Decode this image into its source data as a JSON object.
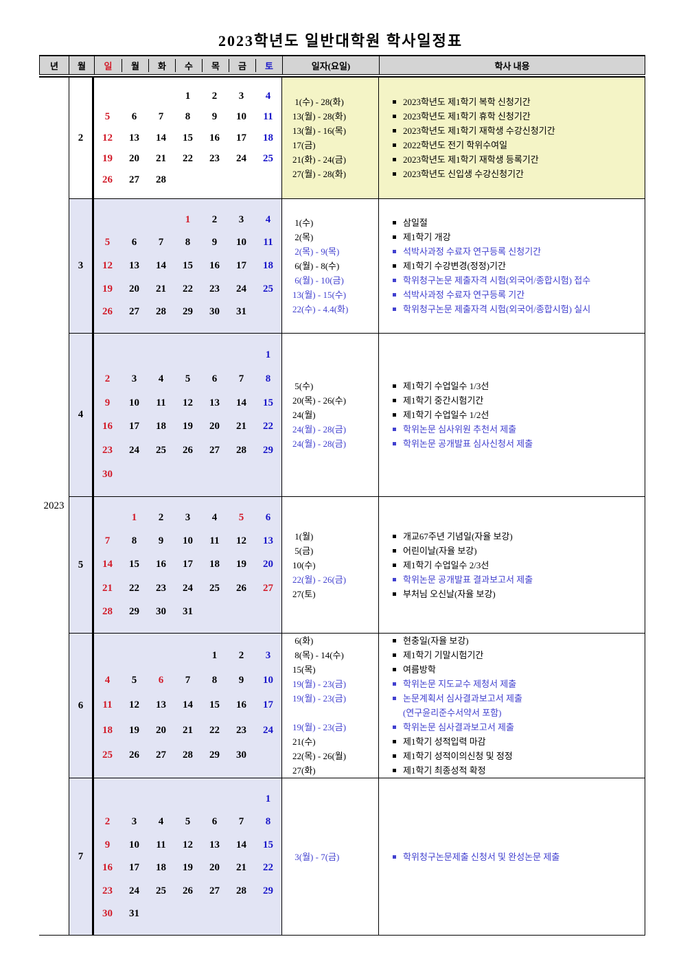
{
  "title": "2023학년도 일반대학원 학사일정표",
  "year_label": "2023",
  "header": {
    "year": "년",
    "month": "월",
    "days": [
      "일",
      "월",
      "화",
      "수",
      "목",
      "금",
      "토"
    ],
    "date_col": "일자(요일)",
    "content_col": "학사 내용"
  },
  "colors": {
    "sunday_red": "#d21c2a",
    "saturday_blue": "#1815c9",
    "event_blue": "#4140cf",
    "header_bg": "#d4d4d4",
    "yellow_bg": "#f4f4c6",
    "lavender_bg": "#e2e4f4"
  },
  "months": [
    {
      "label": "2",
      "calendar_bg": "white",
      "notes_bg": "yellow",
      "weeks": [
        [
          "",
          "",
          "",
          "1",
          "2",
          "3",
          "4b"
        ],
        [
          "5r",
          "6",
          "7",
          "8",
          "9",
          "10",
          "11b"
        ],
        [
          "12r",
          "13",
          "14",
          "15",
          "16",
          "17",
          "18b"
        ],
        [
          "19r",
          "20",
          "21",
          "22",
          "23",
          "24",
          "25b"
        ],
        [
          "26r",
          "27",
          "28",
          "",
          "",
          "",
          ""
        ]
      ],
      "dates": [
        {
          "text": " 1(수) - 28(화)",
          "color": "k"
        },
        {
          "text": "13(월) - 28(화)",
          "color": "k"
        },
        {
          "text": "13(월) - 16(목)",
          "color": "k"
        },
        {
          "text": "17(금)",
          "color": "k"
        },
        {
          "text": "21(화) - 24(금)",
          "color": "k"
        },
        {
          "text": "27(월) - 28(화)",
          "color": "k"
        }
      ],
      "events": [
        {
          "text": "2023학년도 제1학기 복학 신청기간",
          "color": "k",
          "bullet": true
        },
        {
          "text": "2023학년도 제1학기 휴학 신청기간",
          "color": "k",
          "bullet": true
        },
        {
          "text": "2023학년도 제1학기 재학생 수강신청기간",
          "color": "k",
          "bullet": true
        },
        {
          "text": "2022학년도 전기 학위수여일",
          "color": "k",
          "bullet": true
        },
        {
          "text": "2023학년도 제1학기 재학생 등록기간",
          "color": "k",
          "bullet": true
        },
        {
          "text": "2023학년도 신입생 수강신청기간",
          "color": "k",
          "bullet": true
        }
      ]
    },
    {
      "label": "3",
      "calendar_bg": "lavender",
      "notes_bg": "white",
      "weeks": [
        [
          "",
          "",
          "",
          "1r",
          "2",
          "3",
          "4b"
        ],
        [
          "5r",
          "6",
          "7",
          "8",
          "9",
          "10",
          "11b"
        ],
        [
          "12r",
          "13",
          "14",
          "15",
          "16",
          "17",
          "18b"
        ],
        [
          "19r",
          "20",
          "21",
          "22",
          "23",
          "24",
          "25b"
        ],
        [
          "26r",
          "27",
          "28",
          "29",
          "30",
          "31",
          ""
        ]
      ],
      "dates": [
        {
          "text": " 1(수)",
          "color": "k"
        },
        {
          "text": " 2(목)",
          "color": "k"
        },
        {
          "text": " 2(목) - 9(목)",
          "color": "b"
        },
        {
          "text": " 6(월) - 8(수)",
          "color": "k"
        },
        {
          "text": " 6(월) - 10(금)",
          "color": "b"
        },
        {
          "text": "13(월) - 15(수)",
          "color": "b"
        },
        {
          "text": "22(수) - 4.4(화)",
          "color": "b"
        }
      ],
      "events": [
        {
          "text": "삼일절",
          "color": "k",
          "bullet": true
        },
        {
          "text": "제1학기 개강",
          "color": "k",
          "bullet": true
        },
        {
          "text": "석박사과정 수료자 연구등록 신청기간",
          "color": "b",
          "bullet": true
        },
        {
          "text": "제1학기 수강변경(정정)기간",
          "color": "k",
          "bullet": true
        },
        {
          "text": "학위청구논문 제출자격 시험(외국어/종합시험) 접수",
          "color": "b",
          "bullet": true
        },
        {
          "text": "석박사과정 수료자 연구등록 기간",
          "color": "b",
          "bullet": true
        },
        {
          "text": "학위청구논문 제출자격 시험(외국어/종합시험) 실시",
          "color": "b",
          "bullet": true
        }
      ]
    },
    {
      "label": "4",
      "calendar_bg": "lavender",
      "notes_bg": "white",
      "weeks": [
        [
          "",
          "",
          "",
          "",
          "",
          "",
          "1b"
        ],
        [
          "2r",
          "3",
          "4",
          "5",
          "6",
          "7",
          "8b"
        ],
        [
          "9r",
          "10",
          "11",
          "12",
          "13",
          "14",
          "15b"
        ],
        [
          "16r",
          "17",
          "18",
          "19",
          "20",
          "21",
          "22b"
        ],
        [
          "23r",
          "24",
          "25",
          "26",
          "27",
          "28",
          "29b"
        ],
        [
          "30r",
          "",
          "",
          "",
          "",
          "",
          ""
        ]
      ],
      "dates": [
        {
          "text": " 5(수)",
          "color": "k"
        },
        {
          "text": "20(목) - 26(수)",
          "color": "k"
        },
        {
          "text": "24(월)",
          "color": "k"
        },
        {
          "text": "24(월) - 28(금)",
          "color": "b"
        },
        {
          "text": "24(월) - 28(금)",
          "color": "b"
        }
      ],
      "events": [
        {
          "text": "제1학기 수업일수 1/3선",
          "color": "k",
          "bullet": true
        },
        {
          "text": "제1학기 중간시험기간",
          "color": "k",
          "bullet": true
        },
        {
          "text": "제1학기 수업일수 1/2선",
          "color": "k",
          "bullet": true
        },
        {
          "text": "학위논문 심사위원 추천서 제출",
          "color": "b",
          "bullet": true
        },
        {
          "text": "학위논문 공개발표 심사신청서 제출",
          "color": "b",
          "bullet": true
        }
      ]
    },
    {
      "label": "5",
      "calendar_bg": "lavender",
      "notes_bg": "white",
      "weeks": [
        [
          "",
          "1r",
          "2",
          "3",
          "4",
          "5r",
          "6b"
        ],
        [
          "7r",
          "8",
          "9",
          "10",
          "11",
          "12",
          "13b"
        ],
        [
          "14r",
          "15",
          "16",
          "17",
          "18",
          "19",
          "20b"
        ],
        [
          "21r",
          "22",
          "23",
          "24",
          "25",
          "26",
          "27r"
        ],
        [
          "28r",
          "29",
          "30",
          "31",
          "",
          "",
          ""
        ]
      ],
      "dates": [
        {
          "text": " 1(월)",
          "color": "k"
        },
        {
          "text": " 5(금)",
          "color": "k"
        },
        {
          "text": "10(수)",
          "color": "k"
        },
        {
          "text": "22(월) - 26(금)",
          "color": "b"
        },
        {
          "text": "27(토)",
          "color": "k"
        }
      ],
      "events": [
        {
          "text": "개교67주년 기념일(자율 보강)",
          "color": "k",
          "bullet": true
        },
        {
          "text": "어린이날(자율 보강)",
          "color": "k",
          "bullet": true
        },
        {
          "text": "제1학기 수업일수 2/3선",
          "color": "k",
          "bullet": true
        },
        {
          "text": "학위논문 공개발표 결과보고서 제출",
          "color": "b",
          "bullet": true
        },
        {
          "text": "부처님 오신날(자율 보강)",
          "color": "k",
          "bullet": true
        }
      ]
    },
    {
      "label": "6",
      "calendar_bg": "lavender",
      "notes_bg": "white",
      "weeks": [
        [
          "",
          "",
          "",
          "",
          "1",
          "2",
          "3b"
        ],
        [
          "4r",
          "5",
          "6r",
          "7",
          "8",
          "9",
          "10b"
        ],
        [
          "11r",
          "12",
          "13",
          "14",
          "15",
          "16",
          "17b"
        ],
        [
          "18r",
          "19",
          "20",
          "21",
          "22",
          "23",
          "24b"
        ],
        [
          "25r",
          "26",
          "27",
          "28",
          "29",
          "30",
          ""
        ]
      ],
      "dates": [
        {
          "text": " 6(화)",
          "color": "k"
        },
        {
          "text": " 8(목) - 14(수)",
          "color": "k"
        },
        {
          "text": "15(목)",
          "color": "k"
        },
        {
          "text": "19(월) - 23(금)",
          "color": "b"
        },
        {
          "text": "19(월) - 23(금)",
          "color": "b"
        },
        {
          "text": " ",
          "color": "k"
        },
        {
          "text": "19(월) - 23(금)",
          "color": "b"
        },
        {
          "text": "21(수)",
          "color": "k"
        },
        {
          "text": "22(목) - 26(월)",
          "color": "k"
        },
        {
          "text": "27(화)",
          "color": "k"
        }
      ],
      "events": [
        {
          "text": "현충일(자율 보강)",
          "color": "k",
          "bullet": true
        },
        {
          "text": "제1학기 기말시험기간",
          "color": "k",
          "bullet": true
        },
        {
          "text": "여름방학",
          "color": "k",
          "bullet": true
        },
        {
          "text": "학위논문 지도교수 제청서 제출",
          "color": "b",
          "bullet": true
        },
        {
          "text": "논문계획서 심사결과보고서 제출",
          "color": "b",
          "bullet": true
        },
        {
          "text": "(연구윤리준수서약서 포함)",
          "color": "b",
          "bullet": false
        },
        {
          "text": "학위논문 심사결과보고서 제출",
          "color": "b",
          "bullet": true
        },
        {
          "text": "제1학기 성적입력 마감",
          "color": "k",
          "bullet": true
        },
        {
          "text": "제1학기 성적이의신청 및 정정",
          "color": "k",
          "bullet": true
        },
        {
          "text": "제1학기 최종성적 확정",
          "color": "k",
          "bullet": true
        }
      ]
    },
    {
      "label": "7",
      "calendar_bg": "lavender",
      "notes_bg": "white",
      "weeks": [
        [
          "",
          "",
          "",
          "",
          "",
          "",
          "1b"
        ],
        [
          "2r",
          "3",
          "4",
          "5",
          "6",
          "7",
          "8b"
        ],
        [
          "9r",
          "10",
          "11",
          "12",
          "13",
          "14",
          "15b"
        ],
        [
          "16r",
          "17",
          "18",
          "19",
          "20",
          "21",
          "22b"
        ],
        [
          "23r",
          "24",
          "25",
          "26",
          "27",
          "28",
          "29b"
        ],
        [
          "30r",
          "31",
          "",
          "",
          "",
          "",
          ""
        ]
      ],
      "dates": [
        {
          "text": " 3(월) - 7(금)",
          "color": "b"
        }
      ],
      "events": [
        {
          "text": "학위청구논문제출 신청서 및 완성논문 제출",
          "color": "b",
          "bullet": true
        }
      ]
    }
  ]
}
